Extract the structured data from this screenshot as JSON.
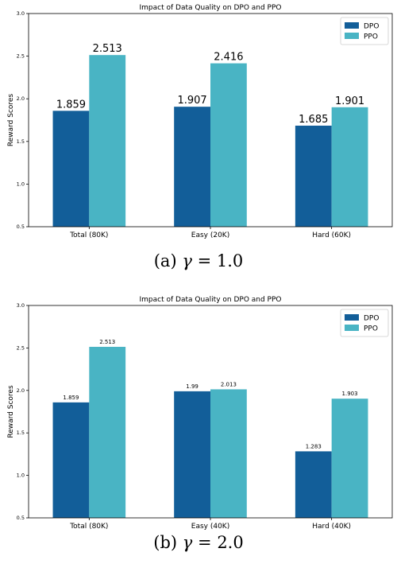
{
  "chart_data": [
    {
      "type": "bar",
      "title": "Impact of Data Quality on DPO and PPO",
      "xlabel": "",
      "ylabel": "Reward Scores",
      "categories": [
        "Total (80K)",
        "Easy (20K)",
        "Hard (60K)"
      ],
      "series": [
        {
          "name": "DPO",
          "values": [
            1.859,
            1.907,
            1.685
          ],
          "labels": [
            "1.859",
            "1.907",
            "1.685"
          ],
          "color": "#125e99"
        },
        {
          "name": "PPO",
          "values": [
            2.513,
            2.416,
            1.901
          ],
          "labels": [
            "2.513",
            "2.416",
            "1.901"
          ],
          "color": "#49b4c4"
        }
      ],
      "ylim": [
        0.5,
        3.0
      ],
      "yticks": [
        "0.5",
        "1.0",
        "1.5",
        "2.0",
        "2.5",
        "3.0"
      ],
      "legend_position": "top-right",
      "grid": false,
      "caption": {
        "prefix": "(a)",
        "symbol": "γ",
        "rest": "= 1.0"
      }
    },
    {
      "type": "bar",
      "title": "Impact of Data Quality on DPO and PPO",
      "xlabel": "",
      "ylabel": "Reward Scores",
      "categories": [
        "Total (80K)",
        "Easy (40K)",
        "Hard (40K)"
      ],
      "series": [
        {
          "name": "DPO",
          "values": [
            1.859,
            1.99,
            1.283
          ],
          "labels": [
            "1.859",
            "1.99",
            "1.283"
          ],
          "color": "#125e99"
        },
        {
          "name": "PPO",
          "values": [
            2.513,
            2.013,
            1.903
          ],
          "labels": [
            "2.513",
            "2.013",
            "1.903"
          ],
          "color": "#49b4c4"
        }
      ],
      "ylim": [
        0.5,
        3.0
      ],
      "yticks": [
        "0.5",
        "1.0",
        "1.5",
        "2.0",
        "2.5",
        "3.0"
      ],
      "legend_position": "top-right",
      "grid": false,
      "caption": {
        "prefix": "(b)",
        "symbol": "γ",
        "rest": "= 2.0"
      }
    }
  ]
}
